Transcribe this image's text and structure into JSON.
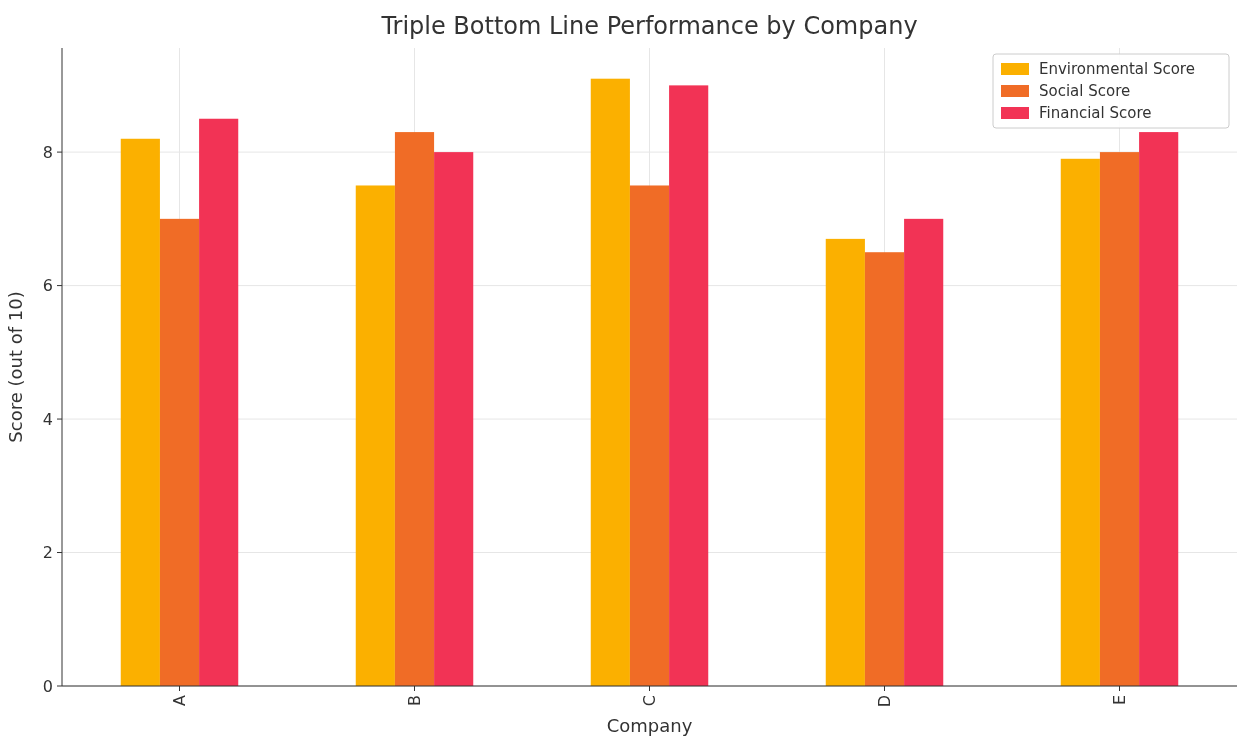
{
  "chart_data": {
    "type": "bar",
    "title": "Triple Bottom Line Performance by Company",
    "xlabel": "Company",
    "ylabel": "Score (out of 10)",
    "categories": [
      "A",
      "B",
      "C",
      "D",
      "E"
    ],
    "series": [
      {
        "name": "Environmental Score",
        "color": "#fbb000",
        "values": [
          8.2,
          7.5,
          9.1,
          6.7,
          7.9
        ]
      },
      {
        "name": "Social Score",
        "color": "#f06c26",
        "values": [
          7.0,
          8.3,
          7.5,
          6.5,
          8.0
        ]
      },
      {
        "name": "Financial Score",
        "color": "#f23355",
        "values": [
          8.5,
          8.0,
          9.0,
          7.0,
          8.3
        ]
      }
    ],
    "ylim": [
      0,
      9.56
    ],
    "yticks": [
      0,
      2,
      4,
      6,
      8
    ],
    "grid": true,
    "legend": "top right"
  }
}
